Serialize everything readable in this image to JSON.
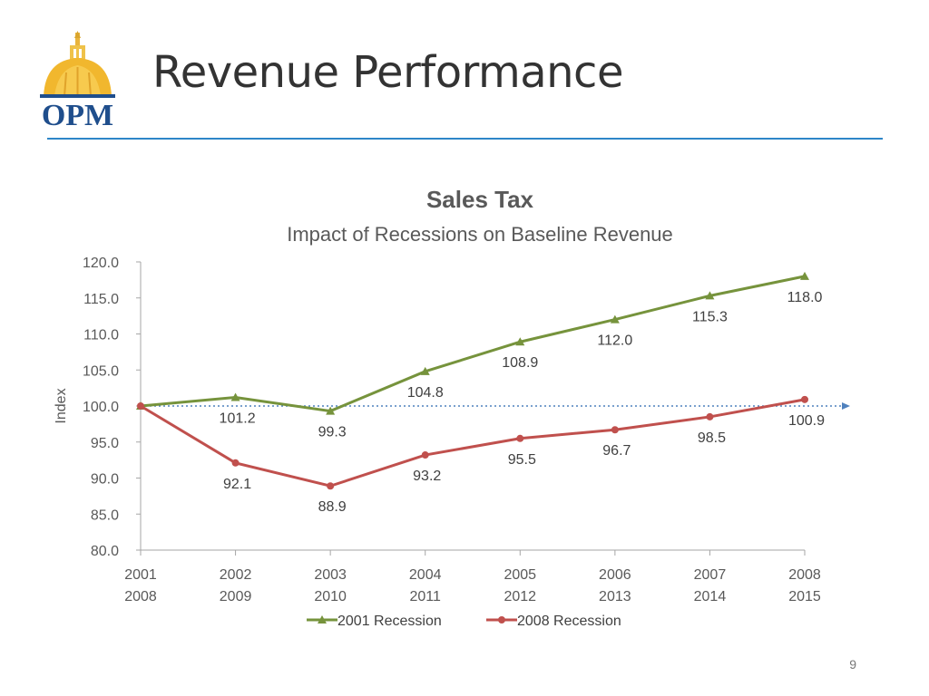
{
  "slide": {
    "title": "Revenue Performance",
    "page_number": "9"
  },
  "logo": {
    "text": "OPM"
  },
  "colors": {
    "series_2001": "#76933C",
    "series_2008": "#C0504D",
    "baseline": "#4F81BD",
    "rule": "#2E86C8"
  },
  "chart_data": {
    "type": "line",
    "title": "Sales Tax",
    "subtitle": "Impact of Recessions on Baseline Revenue",
    "ylabel": "Index",
    "xlabel": "",
    "ylim": [
      80,
      120
    ],
    "yticks": [
      "120.0",
      "115.0",
      "110.0",
      "105.0",
      "100.0",
      "95.0",
      "90.0",
      "85.0",
      "80.0"
    ],
    "categories": [
      [
        "2001",
        "2008"
      ],
      [
        "2002",
        "2009"
      ],
      [
        "2003",
        "2010"
      ],
      [
        "2004",
        "2011"
      ],
      [
        "2005",
        "2012"
      ],
      [
        "2006",
        "2013"
      ],
      [
        "2007",
        "2014"
      ],
      [
        "2008",
        "2015"
      ]
    ],
    "series": [
      {
        "name": "2001 Recession",
        "marker": "triangle",
        "values": [
          100.0,
          101.2,
          99.3,
          104.8,
          108.9,
          112.0,
          115.3,
          118.0
        ],
        "labels": [
          "",
          "101.2",
          "99.3",
          "104.8",
          "108.9",
          "112.0",
          "115.3",
          "118.0"
        ]
      },
      {
        "name": "2008 Recession",
        "marker": "circle",
        "values": [
          100.0,
          92.1,
          88.9,
          93.2,
          95.5,
          96.7,
          98.5,
          100.9
        ],
        "labels": [
          "",
          "92.1",
          "88.9",
          "93.2",
          "95.5",
          "96.7",
          "98.5",
          "100.9"
        ]
      }
    ],
    "baseline": 100.0,
    "legend_position": "bottom"
  }
}
